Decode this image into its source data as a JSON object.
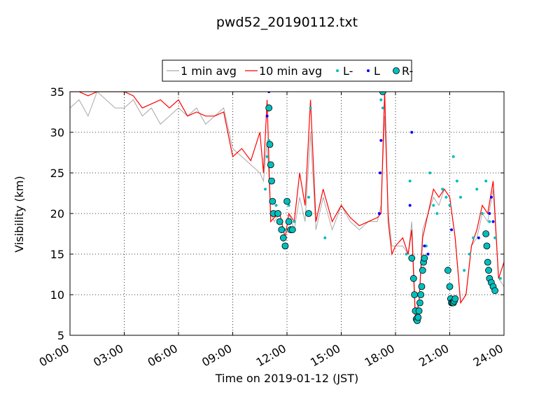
{
  "chart_data": {
    "type": "line",
    "title": "pwd52_20190112.txt",
    "xlabel": "Time on 2019-01-12 (JST)",
    "ylabel": "Visibility (km)",
    "xlim_hours": [
      0,
      24
    ],
    "ylim": [
      5,
      35
    ],
    "x_tick_labels": [
      "00:00",
      "03:00",
      "06:00",
      "09:00",
      "12:00",
      "15:00",
      "18:00",
      "21:00",
      "24:00"
    ],
    "y_ticks": [
      5,
      10,
      15,
      20,
      25,
      30,
      35
    ],
    "grid": true,
    "legend_position": "top-center, above plot",
    "series": [
      {
        "name": "1 min avg",
        "kind": "line",
        "color": "#aaaaaa",
        "x": [
          0,
          0.5,
          1,
          1.5,
          2,
          2.5,
          3,
          3.5,
          4,
          4.5,
          5,
          5.5,
          6,
          6.5,
          7,
          7.5,
          8,
          8.5,
          9,
          9.5,
          10,
          10.5,
          10.7,
          10.9,
          11.1,
          11.3,
          11.6,
          11.9,
          12.1,
          12.4,
          12.7,
          13,
          13.3,
          13.6,
          14,
          14.5,
          15,
          15.5,
          16,
          16.5,
          17,
          17.2,
          17.4,
          17.6,
          17.8,
          18,
          18.4,
          18.7,
          18.9,
          19.1,
          19.3,
          19.5,
          19.8,
          20.1,
          20.4,
          20.7,
          21,
          21.3,
          21.6,
          21.9,
          22.2,
          22.5,
          22.8,
          23.1,
          23.4,
          23.7,
          24
        ],
        "y": [
          33,
          34,
          32,
          35,
          34,
          33,
          33,
          34,
          32,
          33,
          31,
          32,
          33,
          32,
          33,
          31,
          32,
          33,
          28,
          27,
          26,
          25,
          24,
          29,
          20,
          19,
          20,
          17,
          20,
          18,
          22,
          19,
          30,
          18,
          22,
          18,
          21,
          19,
          18,
          19,
          19,
          21,
          32,
          20,
          16,
          16,
          16,
          15,
          19,
          8,
          9,
          18,
          20,
          22,
          21,
          23,
          22,
          17,
          9,
          10,
          16,
          17,
          20,
          19,
          23,
          12,
          11
        ],
        "markers": false
      },
      {
        "name": "10 min avg",
        "kind": "line",
        "color": "#ff0000",
        "x": [
          0,
          0.5,
          1,
          1.5,
          2,
          2.5,
          3,
          3.5,
          4,
          4.5,
          5,
          5.5,
          6,
          6.5,
          7,
          7.5,
          8,
          8.5,
          9,
          9.5,
          10,
          10.5,
          10.7,
          10.9,
          11.1,
          11.3,
          11.6,
          11.9,
          12.1,
          12.4,
          12.7,
          13,
          13.3,
          13.6,
          14,
          14.5,
          15,
          15.5,
          16,
          16.5,
          17,
          17.2,
          17.4,
          17.6,
          17.8,
          18,
          18.4,
          18.7,
          18.9,
          19.1,
          19.3,
          19.5,
          19.8,
          20.1,
          20.4,
          20.7,
          21,
          21.3,
          21.6,
          21.9,
          22.2,
          22.5,
          22.8,
          23.1,
          23.4,
          23.7,
          24
        ],
        "y": [
          35,
          35,
          34.5,
          35,
          35,
          35,
          35,
          34.5,
          33,
          33.5,
          34,
          33,
          34,
          32,
          32.5,
          32,
          32,
          32.5,
          27,
          28,
          26.5,
          30,
          25,
          34,
          19,
          19.5,
          20,
          17,
          20,
          19,
          25,
          21,
          34,
          19,
          23,
          19,
          21,
          19.5,
          18.5,
          19,
          19.5,
          20,
          35,
          19,
          15,
          16,
          17,
          15,
          18,
          7,
          9,
          17,
          20,
          23,
          22,
          23,
          22,
          17,
          9,
          10,
          16,
          18,
          21,
          20,
          24,
          12,
          14
        ],
        "markers": false
      },
      {
        "name": "L-",
        "kind": "points",
        "color": "#00bfbf",
        "x": [
          10.8,
          10.9,
          11,
          11.2,
          11.4,
          11.7,
          11.9,
          12.1,
          12.4,
          13.2,
          13.3,
          14.1,
          17.2,
          17.3,
          18.6,
          18.8,
          19.5,
          19.7,
          19.9,
          20.1,
          20.3,
          20.6,
          20.8,
          21,
          21.2,
          21.4,
          21.6,
          21.8,
          22.1,
          22.3,
          22.5,
          22.8,
          23,
          23.2,
          23.5,
          23.8
        ],
        "y": [
          23,
          27,
          29,
          20,
          21,
          19,
          18,
          21,
          19,
          22,
          33,
          17,
          34,
          33,
          15,
          24,
          14,
          16,
          25,
          21,
          20,
          23,
          22,
          21,
          27,
          24,
          22,
          13,
          15,
          17,
          23,
          20,
          24,
          19,
          17,
          12
        ],
        "markers": true
      },
      {
        "name": "L",
        "kind": "points",
        "color": "#0000ff",
        "x": [
          10.9,
          11,
          17.1,
          17.15,
          17.2,
          18.8,
          18.9,
          19.6,
          19.8,
          21.1,
          22.6,
          23.2,
          23.3,
          23.4
        ],
        "y": [
          32,
          35,
          20,
          25,
          29,
          21,
          30,
          16,
          15,
          18,
          17,
          20,
          22,
          19
        ],
        "markers": true
      },
      {
        "name": "R-",
        "kind": "points",
        "color": "#00bfbf",
        "x": [
          11,
          11.05,
          11.1,
          11.15,
          11.2,
          11.25,
          11.5,
          11.6,
          11.7,
          11.8,
          11.9,
          12,
          12.1,
          12.2,
          12.3,
          13.2,
          17.3,
          18.9,
          19,
          19.05,
          19.1,
          19.15,
          19.2,
          19.25,
          19.3,
          19.35,
          19.4,
          19.45,
          19.5,
          19.55,
          19.6,
          20.9,
          21,
          21.05,
          21.1,
          21.15,
          21.2,
          21.25,
          21.3,
          23,
          23.05,
          23.1,
          23.15,
          23.2,
          23.3,
          23.4,
          23.5
        ],
        "y": [
          33,
          28.5,
          26,
          24,
          21.5,
          20,
          20,
          19,
          18,
          17,
          16,
          21.5,
          19,
          18,
          18,
          20,
          35,
          14.5,
          12,
          10,
          8,
          7,
          6.8,
          7.2,
          8,
          9,
          10,
          11,
          13,
          14,
          14.5,
          13,
          11,
          9.5,
          9,
          9,
          9,
          9.2,
          9.5,
          17.5,
          16,
          14,
          13,
          12,
          11.5,
          11,
          10.5
        ],
        "markers": true
      }
    ]
  }
}
